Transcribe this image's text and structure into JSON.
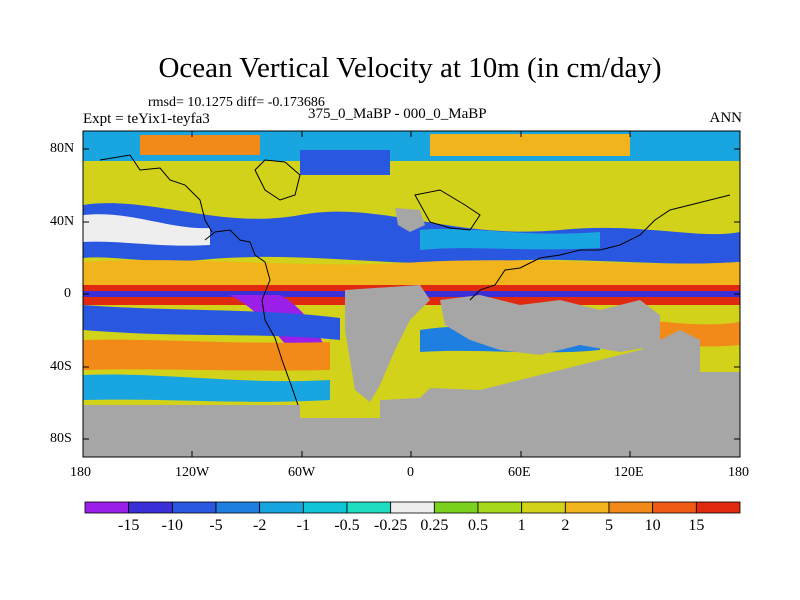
{
  "title": "Ocean Vertical Velocity at 10m (in cm/day)",
  "stats_text": "rmsd= 10.1275 diff= -0.173686",
  "expt_text": "Expt = teYix1-teyfa3",
  "subtitle": "375_0_MaBP - 000_0_MaBP",
  "season": "ANN",
  "lat_labels": [
    "80N",
    "40N",
    "0",
    "40S",
    "80S"
  ],
  "lon_labels": [
    "180",
    "120W",
    "60W",
    "0",
    "60E",
    "120E",
    "180"
  ],
  "colorbar": {
    "labels": [
      "-15",
      "-10",
      "-5",
      "-2",
      "-1",
      "-0.5",
      "-0.25",
      "0.25",
      "0.5",
      "1",
      "2",
      "5",
      "10",
      "15"
    ],
    "colors": [
      "#9b1fe8",
      "#3a2fd6",
      "#2a57e0",
      "#1e7fe0",
      "#19a6e0",
      "#12c4d8",
      "#20dcc0",
      "#eeeeee",
      "#7bd21e",
      "#a8d81c",
      "#d2d21a",
      "#f2b41c",
      "#f28a1a",
      "#ef5a14",
      "#e02a10"
    ]
  },
  "colors": {
    "land": "#a6a6a6",
    "coast": "#000000"
  }
}
